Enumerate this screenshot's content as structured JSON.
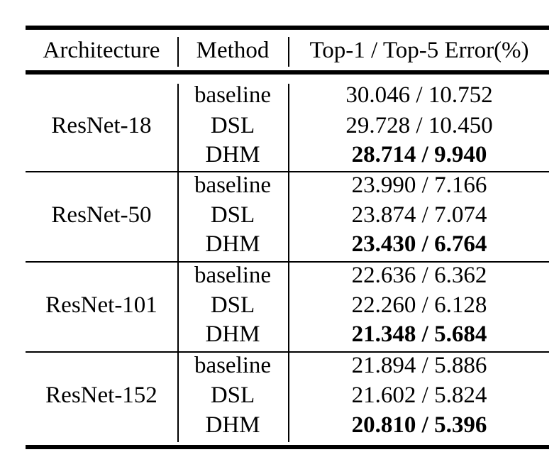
{
  "table": {
    "headers": [
      "Architecture",
      "Method",
      "Top-1 / Top-5 Error(%)"
    ],
    "groups": [
      {
        "architecture": "ResNet-18",
        "rows": [
          {
            "method": "baseline",
            "error": "30.046 / 10.752",
            "best": false
          },
          {
            "method": "DSL",
            "error": "29.728 / 10.450",
            "best": false
          },
          {
            "method": "DHM",
            "error": "28.714 / 9.940",
            "best": true
          }
        ]
      },
      {
        "architecture": "ResNet-50",
        "rows": [
          {
            "method": "baseline",
            "error": "23.990 / 7.166",
            "best": false
          },
          {
            "method": "DSL",
            "error": "23.874 / 7.074",
            "best": false
          },
          {
            "method": "DHM",
            "error": "23.430 / 6.764",
            "best": true
          }
        ]
      },
      {
        "architecture": "ResNet-101",
        "rows": [
          {
            "method": "baseline",
            "error": "22.636 / 6.362",
            "best": false
          },
          {
            "method": "DSL",
            "error": "22.260 / 6.128",
            "best": false
          },
          {
            "method": "DHM",
            "error": "21.348 / 5.684",
            "best": true
          }
        ]
      },
      {
        "architecture": "ResNet-152",
        "rows": [
          {
            "method": "baseline",
            "error": "21.894 / 5.886",
            "best": false
          },
          {
            "method": "DSL",
            "error": "21.602 / 5.824",
            "best": false
          },
          {
            "method": "DHM",
            "error": "20.810 / 5.396",
            "best": true
          }
        ]
      }
    ]
  }
}
